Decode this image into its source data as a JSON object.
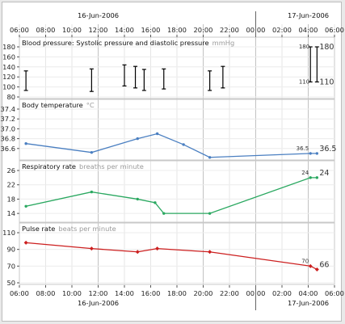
{
  "chart_data": [
    {
      "type": "range",
      "title": "Blood pressure: Systolic pressure and diastolic pressure",
      "unit": "mmHg",
      "ylim": [
        80,
        180
      ],
      "yticks": [
        80,
        100,
        120,
        140,
        160,
        180
      ],
      "x": [
        "2006-06-16 06:30",
        "2006-06-16 11:30",
        "2006-06-16 14:00",
        "2006-06-16 14:50",
        "2006-06-16 15:30",
        "2006-06-16 17:00",
        "2006-06-16 20:30",
        "2006-06-16 21:30",
        "2006-06-17 04:10",
        "2006-06-17 04:40"
      ],
      "systolic": [
        132,
        136,
        144,
        141,
        135,
        136,
        132,
        141,
        180,
        180
      ],
      "diastolic": [
        93,
        91,
        102,
        98,
        93,
        96,
        93,
        98,
        110,
        110
      ],
      "data_labels": {
        "systolic": "180",
        "diastolic": "110",
        "systolic_big": "180",
        "diastolic_big": "110"
      },
      "color": "#000000"
    },
    {
      "type": "line",
      "title": "Body temperature",
      "unit": "°C",
      "ylim": [
        36.4,
        37.4
      ],
      "yticks": [
        36.6,
        36.8,
        37.0,
        37.2,
        37.4
      ],
      "x": [
        "2006-06-16 06:30",
        "2006-06-16 11:30",
        "2006-06-16 15:00",
        "2006-06-16 16:30",
        "2006-06-16 18:30",
        "2006-06-16 20:30",
        "2006-06-17 04:10",
        "2006-06-17 04:40"
      ],
      "values": [
        36.7,
        36.52,
        36.8,
        36.9,
        36.68,
        36.42,
        36.5,
        36.5
      ],
      "data_labels": {
        "small": "36.5",
        "big": "36.5"
      },
      "color": "#4a7fc1"
    },
    {
      "type": "line",
      "title": "Respiratory rate",
      "unit": "breaths per minute",
      "ylim": [
        12,
        26
      ],
      "yticks": [
        14,
        18,
        22,
        26
      ],
      "x": [
        "2006-06-16 06:30",
        "2006-06-16 11:30",
        "2006-06-16 15:00",
        "2006-06-16 16:20",
        "2006-06-16 17:00",
        "2006-06-16 20:30",
        "2006-06-17 04:10",
        "2006-06-17 04:40"
      ],
      "values": [
        16,
        20,
        18,
        17,
        14,
        14,
        24,
        24
      ],
      "data_labels": {
        "small": "24",
        "big": "24"
      },
      "color": "#2aa860"
    },
    {
      "type": "line",
      "title": "Pulse rate",
      "unit": "beats per minute",
      "ylim": [
        50,
        110
      ],
      "yticks": [
        50,
        70,
        90,
        110
      ],
      "x": [
        "2006-06-16 06:30",
        "2006-06-16 11:30",
        "2006-06-16 15:00",
        "2006-06-16 16:30",
        "2006-06-16 20:30",
        "2006-06-17 04:10",
        "2006-06-17 04:40"
      ],
      "values": [
        98,
        91,
        87,
        91,
        87,
        70,
        66
      ],
      "data_labels": {
        "small": "70",
        "big": "66"
      },
      "color": "#cc1f1f"
    }
  ],
  "axis": {
    "x_tick_labels": [
      "06:00",
      "08:00",
      "10:00",
      "12:00",
      "14:00",
      "16:00",
      "18:00",
      "20:00",
      "22:00",
      "00:00",
      "02:00",
      "04:00",
      "06:00"
    ],
    "x_range": [
      "2006-06-16 06:00",
      "2006-06-17 06:00"
    ],
    "date_labels": [
      {
        "text": "16-Jun-2006",
        "at": "2006-06-16 12:00"
      },
      {
        "text": "17-Jun-2006",
        "at": "2006-06-17 04:00"
      }
    ],
    "day_boundary": "2006-06-17 00:00"
  }
}
